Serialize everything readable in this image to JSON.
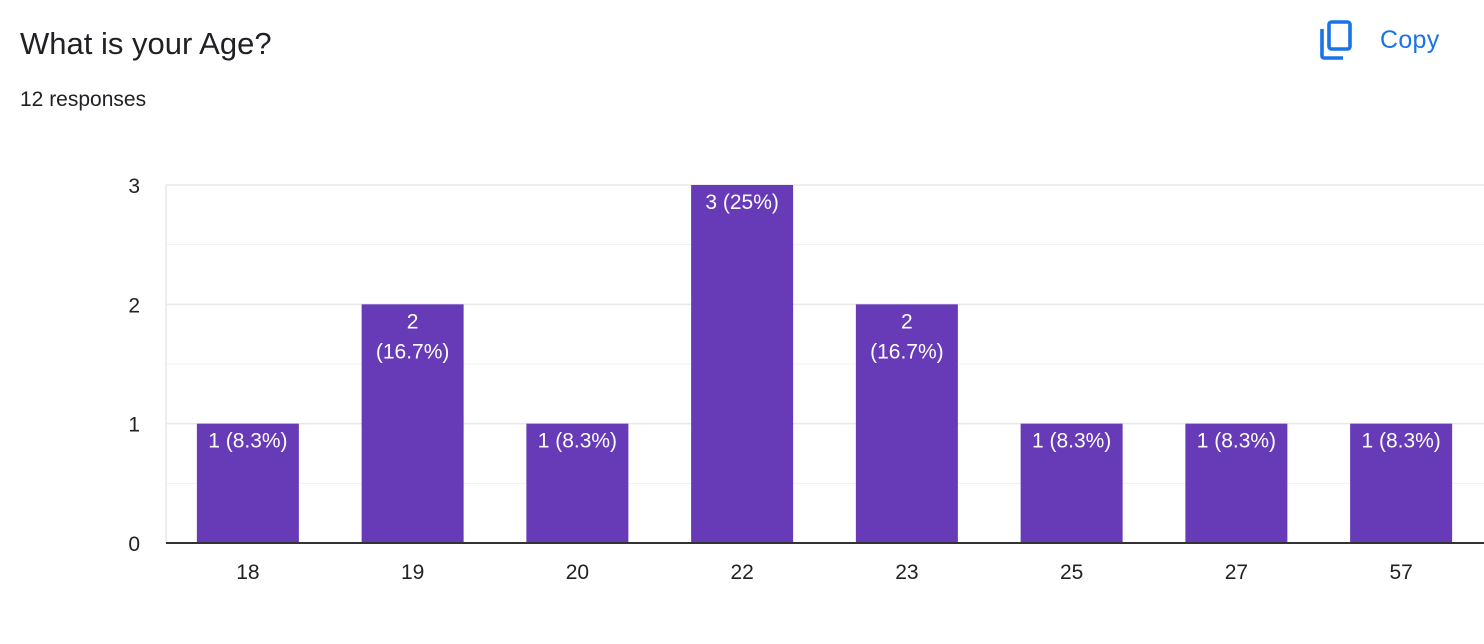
{
  "header": {
    "title": "What is your Age?",
    "responses": "12 responses"
  },
  "actions": {
    "copy_label": "Copy",
    "copy_icon": "copy-icon"
  },
  "colors": {
    "bar": "#673ab7",
    "accent": "#1a73e8",
    "grid": "#e8e8e8",
    "axis": "#333333"
  },
  "chart_data": {
    "type": "bar",
    "categories": [
      "18",
      "19",
      "20",
      "22",
      "23",
      "25",
      "27",
      "57"
    ],
    "values": [
      1,
      2,
      1,
      3,
      2,
      1,
      1,
      1
    ],
    "data_labels": [
      [
        "1 (8.3%)"
      ],
      [
        "2",
        "(16.7%)"
      ],
      [
        "1 (8.3%)"
      ],
      [
        "3 (25%)"
      ],
      [
        "2",
        "(16.7%)"
      ],
      [
        "1 (8.3%)"
      ],
      [
        "1 (8.3%)"
      ],
      [
        "1 (8.3%)"
      ]
    ],
    "yticks": [
      "0",
      "1",
      "2",
      "3"
    ],
    "ylim": [
      0,
      3
    ],
    "minor_grid_step": 0.5,
    "grid": true,
    "legend": "none"
  }
}
